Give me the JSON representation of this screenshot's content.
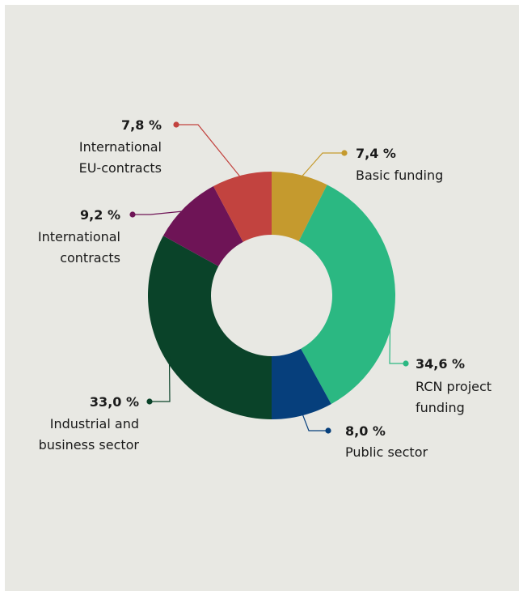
{
  "colors": {
    "background": "#e8e8e3",
    "basic": "#c59a2e",
    "rcn": "#2bb882",
    "public": "#063f7c",
    "industrial": "#0a4329",
    "intl": "#6e1456",
    "eu": "#c2433f"
  },
  "chart_data": {
    "type": "pie",
    "donut": true,
    "slices": [
      {
        "name": "basic",
        "value": 7.4,
        "value_label": "7,4 %",
        "label_lines": [
          "Basic funding"
        ],
        "color": "#c59a2e"
      },
      {
        "name": "rcn",
        "value": 34.6,
        "value_label": "34,6 %",
        "label_lines": [
          "RCN project",
          "funding"
        ],
        "color": "#2bb882"
      },
      {
        "name": "public",
        "value": 8.0,
        "value_label": "8,0 %",
        "label_lines": [
          "Public sector"
        ],
        "color": "#063f7c"
      },
      {
        "name": "industrial",
        "value": 33.0,
        "value_label": "33,0 %",
        "label_lines": [
          "Industrial and",
          "business sector"
        ],
        "color": "#0a4329"
      },
      {
        "name": "intl",
        "value": 9.2,
        "value_label": "9,2 %",
        "label_lines": [
          "International",
          "contracts"
        ],
        "color": "#6e1456"
      },
      {
        "name": "eu",
        "value": 7.8,
        "value_label": "7,8 %",
        "label_lines": [
          "International",
          "EU-contracts"
        ],
        "color": "#c2433f"
      }
    ]
  }
}
